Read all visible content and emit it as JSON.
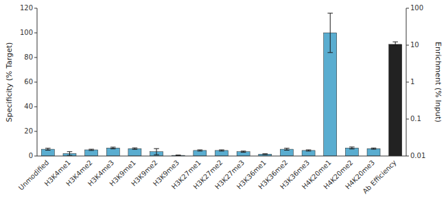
{
  "chart_data": {
    "type": "bar",
    "categories": [
      "Unmodified",
      "H3K4me1",
      "H3K4me2",
      "H3K4me3",
      "H3K9me1",
      "H3K9me2",
      "H3K9me3",
      "H3K27me1",
      "H3K27me2",
      "H3K27me3",
      "H3K36me1",
      "H3K36me2",
      "H3K36me3",
      "H4K20me1",
      "H4K20me2",
      "H4K20me3",
      "Ab Efficiency"
    ],
    "series": [
      {
        "color": "#5aadd0",
        "values": [
          5.5,
          2.0,
          5.0,
          6.5,
          6.0,
          3.5,
          0.5,
          4.5,
          4.5,
          3.5,
          1.5,
          5.5,
          4.5,
          100.0,
          6.5,
          6.0,
          null
        ],
        "errors": [
          0.8,
          1.5,
          0.5,
          0.7,
          0.6,
          2.5,
          0.3,
          0.5,
          0.5,
          0.5,
          0.3,
          0.8,
          0.5,
          16.0,
          0.8,
          0.5,
          null
        ]
      },
      {
        "color": "#222222",
        "axis": "y2",
        "values": [
          null,
          null,
          null,
          null,
          null,
          null,
          null,
          null,
          null,
          null,
          null,
          null,
          null,
          null,
          null,
          null,
          10.5
        ],
        "error_lower": [
          null,
          null,
          null,
          null,
          null,
          null,
          null,
          null,
          null,
          null,
          null,
          null,
          null,
          null,
          null,
          null,
          0.8
        ],
        "error_upper": [
          null,
          null,
          null,
          null,
          null,
          null,
          null,
          null,
          null,
          null,
          null,
          null,
          null,
          null,
          null,
          null,
          1.8
        ]
      }
    ],
    "y_label": "Specificity (% Target)",
    "y2_label": "Enrichment (% Input)",
    "ylim": [
      0,
      120
    ],
    "yticks": [
      0,
      20,
      40,
      60,
      80,
      100,
      120
    ],
    "y2lim": [
      0.01,
      100
    ],
    "y2ticks": [
      0.01,
      0.1,
      1,
      10,
      100
    ],
    "log": "y2",
    "grid": false
  }
}
